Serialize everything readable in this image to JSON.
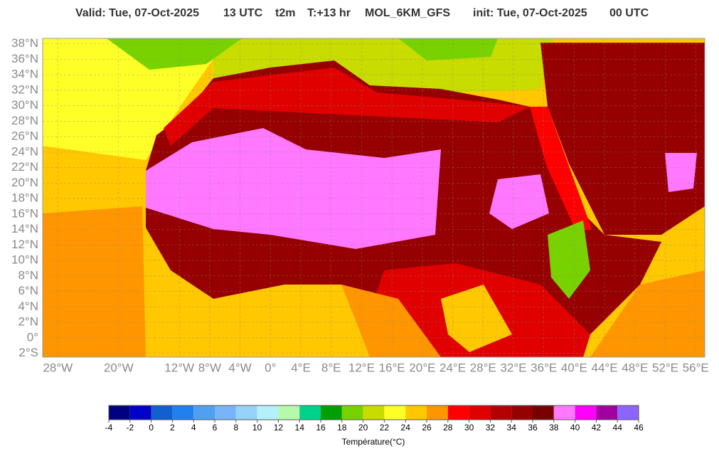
{
  "header": {
    "title_parts": [
      "Valid: Tue, 07-Oct-2025",
      "13 UTC",
      "t2m",
      "T:+13 hr",
      "MOL_6KM_GFS",
      "init: Tue, 07-Oct-2025",
      "00 UTC"
    ]
  },
  "map": {
    "lonlim": [
      -30,
      57.2
    ],
    "latlim": [
      -2.5,
      38.7
    ],
    "lon_ticks": [
      {
        "value": -28,
        "label": "28°W"
      },
      {
        "value": -20,
        "label": "20°W"
      },
      {
        "value": -12,
        "label": "12°W"
      },
      {
        "value": -8,
        "label": "8°W"
      },
      {
        "value": -4,
        "label": "4°W"
      },
      {
        "value": 0,
        "label": "0°"
      },
      {
        "value": 4,
        "label": "4°E"
      },
      {
        "value": 8,
        "label": "8°E"
      },
      {
        "value": 12,
        "label": "12°E"
      },
      {
        "value": 16,
        "label": "16°E"
      },
      {
        "value": 20,
        "label": "20°E"
      },
      {
        "value": 24,
        "label": "24°E"
      },
      {
        "value": 28,
        "label": "28°E"
      },
      {
        "value": 32,
        "label": "32°E"
      },
      {
        "value": 36,
        "label": "36°E"
      },
      {
        "value": 40,
        "label": "40°E"
      },
      {
        "value": 44,
        "label": "44°E"
      },
      {
        "value": 48,
        "label": "48°E"
      },
      {
        "value": 52,
        "label": "52°E"
      },
      {
        "value": 56,
        "label": "56°E"
      }
    ],
    "lat_ticks": [
      {
        "value": 38,
        "label": "38°N"
      },
      {
        "value": 36,
        "label": "36°N"
      },
      {
        "value": 34,
        "label": "34°N"
      },
      {
        "value": 32,
        "label": "32°N"
      },
      {
        "value": 30,
        "label": "30°N"
      },
      {
        "value": 28,
        "label": "28°N"
      },
      {
        "value": 26,
        "label": "26°N"
      },
      {
        "value": 24,
        "label": "24°N"
      },
      {
        "value": 22,
        "label": "22°N"
      },
      {
        "value": 20,
        "label": "20°N"
      },
      {
        "value": 18,
        "label": "18°N"
      },
      {
        "value": 16,
        "label": "16°N"
      },
      {
        "value": 14,
        "label": "14°N"
      },
      {
        "value": 12,
        "label": "12°N"
      },
      {
        "value": 10,
        "label": "10°N"
      },
      {
        "value": 8,
        "label": "8°N"
      },
      {
        "value": 6,
        "label": "6°N"
      },
      {
        "value": 4,
        "label": "4°N"
      },
      {
        "value": 2,
        "label": "2°N"
      },
      {
        "value": 0,
        "label": "0°"
      },
      {
        "value": -2,
        "label": "2°S"
      }
    ]
  },
  "colorbar": {
    "label": "Température(°C)",
    "ticks": [
      -4,
      -2,
      0,
      2,
      4,
      6,
      8,
      10,
      12,
      14,
      16,
      18,
      20,
      22,
      24,
      26,
      28,
      30,
      32,
      34,
      36,
      38,
      40,
      42,
      44,
      46
    ],
    "colors": [
      "#000080",
      "#0000c8",
      "#1060d0",
      "#2080f0",
      "#50a0f0",
      "#78b4f8",
      "#96d2fa",
      "#b4f0fa",
      "#b4faaa",
      "#00d28c",
      "#00a000",
      "#78d200",
      "#c8dc00",
      "#ffff28",
      "#ffc800",
      "#ff9600",
      "#ff0000",
      "#e10000",
      "#b40000",
      "#960000",
      "#780000",
      "#ff78ff",
      "#ff00ff",
      "#a000a0",
      "#8c64ff"
    ]
  }
}
